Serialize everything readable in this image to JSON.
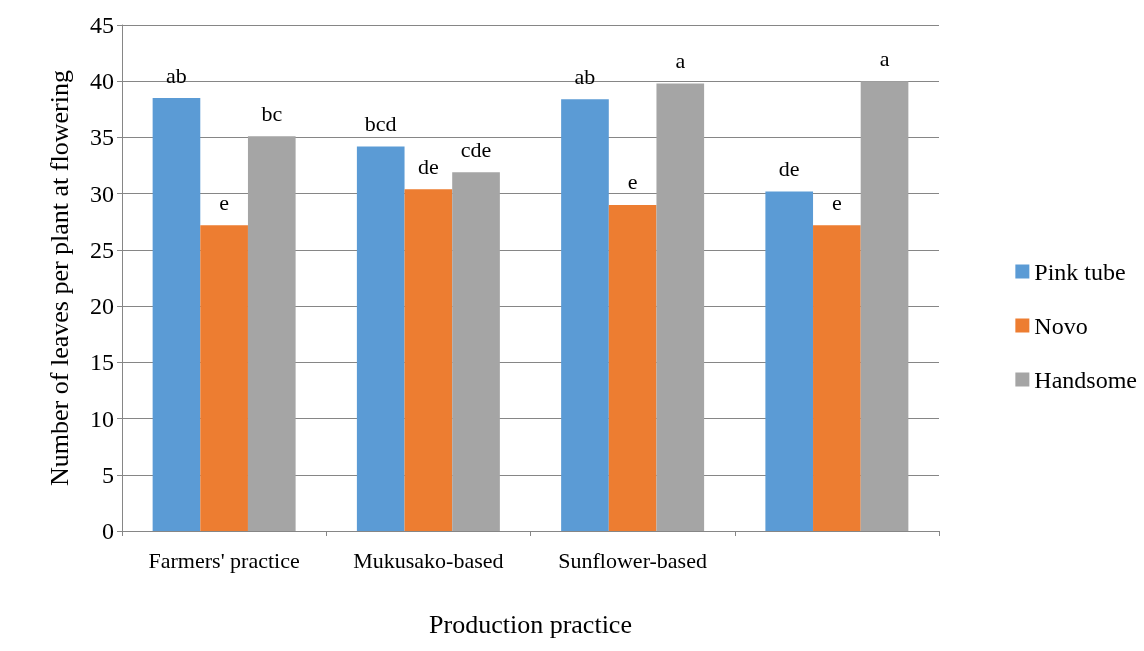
{
  "chart_data": {
    "type": "bar",
    "xlabel": "Production practice",
    "ylabel": "Number of leaves per plant at flowering",
    "categories": [
      "Farmers' practice",
      "Mukusako-based",
      "Sunflower-based",
      null
    ],
    "series": [
      {
        "name": "Pink tube",
        "color": "#5b9bd5",
        "values": [
          38.5,
          34.2,
          38.4,
          30.2
        ],
        "value_labels": [
          "ab",
          "bcd",
          "ab",
          "de"
        ]
      },
      {
        "name": "Novo",
        "color": "#ed7d31",
        "values": [
          27.2,
          30.4,
          29.0,
          27.2
        ],
        "value_labels": [
          "e",
          "de",
          "e",
          "e"
        ]
      },
      {
        "name": "Handsome",
        "color": "#a5a5a5",
        "values": [
          35.1,
          31.9,
          39.8,
          40.0
        ],
        "value_labels": [
          "bc",
          "cde",
          "a",
          "a"
        ]
      }
    ],
    "ylim": [
      0,
      45
    ],
    "yticks": [
      0,
      5,
      10,
      15,
      20,
      25,
      30,
      35,
      40,
      45
    ],
    "grid": "y",
    "legend": "right"
  }
}
